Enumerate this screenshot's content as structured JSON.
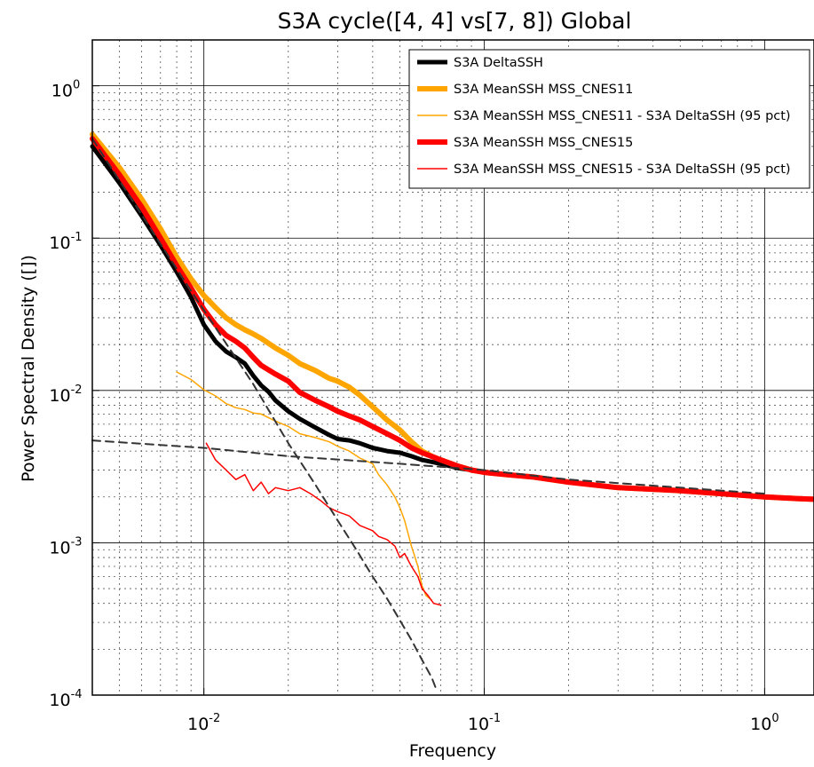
{
  "chart_data": {
    "type": "line",
    "title": "S3A cycle([4, 4] vs[7, 8]) Global",
    "xlabel": "Frequency",
    "ylabel": "Power Spectral Density ([])",
    "x_scale": "log",
    "y_scale": "log",
    "xlim": [
      0.004,
      1.5
    ],
    "ylim": [
      0.0001,
      2.0
    ],
    "grid": true,
    "legend_position": "top-right",
    "x_ticks": [
      {
        "value": 0.01,
        "base": "10",
        "exp": "-2"
      },
      {
        "value": 0.1,
        "base": "10",
        "exp": "-1"
      },
      {
        "value": 1,
        "base": "10",
        "exp": "0"
      }
    ],
    "y_ticks": [
      {
        "value": 1,
        "base": "10",
        "exp": "0"
      },
      {
        "value": 0.1,
        "base": "10",
        "exp": "-1"
      },
      {
        "value": 0.01,
        "base": "10",
        "exp": "-2"
      },
      {
        "value": 0.001,
        "base": "10",
        "exp": "-3"
      },
      {
        "value": 0.0001,
        "base": "10",
        "exp": "-4"
      }
    ],
    "series": [
      {
        "name": "S3A DeltaSSH",
        "color": "#000000",
        "width": 5,
        "x": [
          0.004,
          0.005,
          0.006,
          0.007,
          0.008,
          0.009,
          0.01,
          0.011,
          0.012,
          0.013,
          0.014,
          0.015,
          0.016,
          0.017,
          0.018,
          0.02,
          0.022,
          0.025,
          0.028,
          0.03,
          0.033,
          0.036,
          0.04,
          0.045,
          0.05,
          0.055,
          0.06,
          0.07,
          0.08,
          0.09,
          0.1,
          0.12,
          0.15,
          0.2,
          0.3,
          0.5,
          0.7,
          1.0,
          1.3,
          1.5
        ],
        "y": [
          0.4,
          0.23,
          0.14,
          0.09,
          0.06,
          0.041,
          0.027,
          0.021,
          0.018,
          0.0165,
          0.015,
          0.0125,
          0.0108,
          0.0098,
          0.0086,
          0.0073,
          0.0065,
          0.0057,
          0.0051,
          0.0048,
          0.0047,
          0.0045,
          0.0042,
          0.004,
          0.0039,
          0.0037,
          0.0035,
          0.0033,
          0.0031,
          0.003,
          0.0029,
          0.0028,
          0.0027,
          0.0025,
          0.0023,
          0.0022,
          0.0021,
          0.002,
          0.00195,
          0.00193
        ]
      },
      {
        "name": "S3A MeanSSH MSS_CNES11",
        "color": "#ffa500",
        "width": 6,
        "x": [
          0.004,
          0.005,
          0.006,
          0.007,
          0.008,
          0.009,
          0.01,
          0.011,
          0.012,
          0.013,
          0.014,
          0.015,
          0.016,
          0.018,
          0.02,
          0.022,
          0.025,
          0.028,
          0.03,
          0.033,
          0.036,
          0.04,
          0.045,
          0.05,
          0.055,
          0.06,
          0.065,
          0.07,
          0.08,
          0.09,
          0.1,
          0.12,
          0.15,
          0.2,
          0.3,
          0.5,
          0.7,
          1.0,
          1.3,
          1.5
        ],
        "y": [
          0.48,
          0.29,
          0.18,
          0.115,
          0.075,
          0.054,
          0.042,
          0.035,
          0.03,
          0.027,
          0.025,
          0.0235,
          0.022,
          0.019,
          0.017,
          0.015,
          0.0135,
          0.012,
          0.0115,
          0.0105,
          0.0093,
          0.0078,
          0.0064,
          0.0055,
          0.0046,
          0.004,
          0.0037,
          0.0035,
          0.0032,
          0.003,
          0.0029,
          0.0028,
          0.0027,
          0.0025,
          0.0023,
          0.0022,
          0.0021,
          0.002,
          0.00195,
          0.00193
        ]
      },
      {
        "name": "S3A MeanSSH MSS_CNES11 - S3A DeltaSSH (95 pct)",
        "color": "#ffa500",
        "width": 1.5,
        "x": [
          0.008,
          0.009,
          0.01,
          0.011,
          0.012,
          0.013,
          0.014,
          0.015,
          0.016,
          0.018,
          0.02,
          0.022,
          0.025,
          0.028,
          0.03,
          0.033,
          0.036,
          0.04,
          0.042,
          0.045,
          0.048,
          0.05,
          0.052,
          0.055,
          0.058,
          0.06,
          0.062,
          0.065
        ],
        "y": [
          0.0132,
          0.0118,
          0.0101,
          0.0092,
          0.0082,
          0.0077,
          0.0075,
          0.0071,
          0.007,
          0.0063,
          0.0058,
          0.0052,
          0.0049,
          0.0046,
          0.0043,
          0.004,
          0.0036,
          0.0033,
          0.0028,
          0.0024,
          0.002,
          0.0017,
          0.0014,
          0.00095,
          0.0007,
          0.00052,
          0.00045,
          0.00042
        ]
      },
      {
        "name": "S3A MeanSSH MSS_CNES15",
        "color": "#ff0000",
        "width": 6,
        "x": [
          0.004,
          0.005,
          0.006,
          0.007,
          0.008,
          0.009,
          0.01,
          0.011,
          0.012,
          0.013,
          0.014,
          0.015,
          0.016,
          0.018,
          0.02,
          0.022,
          0.025,
          0.028,
          0.03,
          0.033,
          0.036,
          0.04,
          0.045,
          0.05,
          0.055,
          0.06,
          0.07,
          0.08,
          0.09,
          0.1,
          0.12,
          0.15,
          0.2,
          0.3,
          0.5,
          0.7,
          1.0,
          1.3,
          1.5
        ],
        "y": [
          0.45,
          0.26,
          0.16,
          0.1,
          0.066,
          0.047,
          0.034,
          0.027,
          0.023,
          0.021,
          0.019,
          0.0165,
          0.0146,
          0.0128,
          0.0115,
          0.0097,
          0.0086,
          0.0078,
          0.0073,
          0.0068,
          0.0064,
          0.0058,
          0.0052,
          0.0047,
          0.0042,
          0.0039,
          0.0035,
          0.0032,
          0.003,
          0.0029,
          0.0028,
          0.0027,
          0.0025,
          0.0023,
          0.0022,
          0.0021,
          0.002,
          0.00195,
          0.00193
        ]
      },
      {
        "name": "S3A MeanSSH MSS_CNES15 - S3A DeltaSSH (95 pct)",
        "color": "#ff0000",
        "width": 1.5,
        "x": [
          0.0102,
          0.011,
          0.012,
          0.013,
          0.014,
          0.015,
          0.016,
          0.017,
          0.018,
          0.02,
          0.022,
          0.024,
          0.026,
          0.028,
          0.03,
          0.033,
          0.036,
          0.04,
          0.042,
          0.045,
          0.048,
          0.05,
          0.052,
          0.055,
          0.058,
          0.06,
          0.063,
          0.066,
          0.07
        ],
        "y": [
          0.0045,
          0.0035,
          0.003,
          0.0026,
          0.0028,
          0.0022,
          0.0025,
          0.0021,
          0.0023,
          0.0022,
          0.0023,
          0.0021,
          0.0019,
          0.0017,
          0.0016,
          0.0015,
          0.0013,
          0.0012,
          0.0011,
          0.00105,
          0.00095,
          0.0008,
          0.00085,
          0.0007,
          0.0006,
          0.0005,
          0.00045,
          0.0004,
          0.00039
        ]
      },
      {
        "name": "",
        "color": "#333333",
        "width": 2,
        "dash": true,
        "x": [
          0.004,
          0.009,
          0.015,
          0.02,
          0.025,
          0.03,
          0.035,
          0.04,
          0.045,
          0.05,
          0.055,
          0.06,
          0.065,
          0.068
        ],
        "y": [
          0.45,
          0.045,
          0.011,
          0.0045,
          0.0024,
          0.0014,
          0.0009,
          0.0006,
          0.00043,
          0.00031,
          0.00023,
          0.00017,
          0.00013,
          0.000105
        ]
      },
      {
        "name": "",
        "color": "#333333",
        "width": 2,
        "dash": true,
        "x": [
          0.004,
          0.01,
          0.02,
          0.05,
          0.1,
          0.2,
          0.5,
          1.0
        ],
        "y": [
          0.0047,
          0.0042,
          0.0037,
          0.0033,
          0.003,
          0.0026,
          0.0023,
          0.0021
        ]
      }
    ]
  }
}
